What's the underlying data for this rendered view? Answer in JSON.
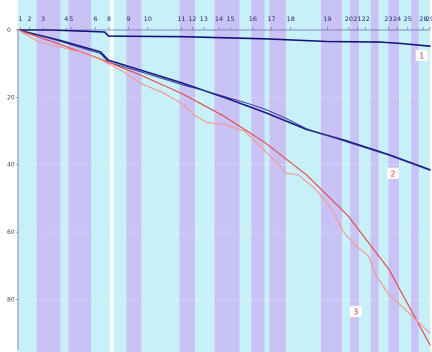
{
  "chart_data": {
    "type": "line",
    "title": "",
    "xlabel": "",
    "ylabel": "",
    "x_range": [
      0,
      100
    ],
    "ylim": [
      0,
      95
    ],
    "y_inverted": true,
    "y_ticks": [
      0,
      20,
      40,
      60,
      80
    ],
    "top_ticks": [
      {
        "label": "1",
        "x": 0.6
      },
      {
        "label": "2",
        "x": 2.8
      },
      {
        "label": "3",
        "x": 6.1
      },
      {
        "label": "4",
        "x": 11.7
      },
      {
        "label": "5",
        "x": 12.9
      },
      {
        "label": "6",
        "x": 18.8
      },
      {
        "label": "8",
        "x": 22.1
      },
      {
        "label": "9",
        "x": 26.8
      },
      {
        "label": "10",
        "x": 31.5
      },
      {
        "label": "11",
        "x": 39.7
      },
      {
        "label": "12",
        "x": 42.3
      },
      {
        "label": "13",
        "x": 45.1
      },
      {
        "label": "14",
        "x": 48.8
      },
      {
        "label": "15",
        "x": 51.6
      },
      {
        "label": "16",
        "x": 57.0
      },
      {
        "label": "17",
        "x": 61.5
      },
      {
        "label": "18",
        "x": 66.2
      },
      {
        "label": "19",
        "x": 75.1
      },
      {
        "label": "20",
        "x": 80.3
      },
      {
        "label": "21",
        "x": 82.4
      },
      {
        "label": "22",
        "x": 84.4
      },
      {
        "label": "23",
        "x": 89.9
      },
      {
        "label": "24",
        "x": 92.0
      },
      {
        "label": "25",
        "x": 94.6
      },
      {
        "label": "28",
        "x": 98.4
      },
      {
        "label": "29",
        "x": 100.0
      }
    ],
    "bands": [
      {
        "x0": 0.0,
        "x1": 4.5,
        "color": "#c8f0f8"
      },
      {
        "x0": 4.5,
        "x1": 10.3,
        "color": "#c9c3f5"
      },
      {
        "x0": 10.3,
        "x1": 12.2,
        "color": "#c8f0f8"
      },
      {
        "x0": 12.2,
        "x1": 17.8,
        "color": "#c9c3f5"
      },
      {
        "x0": 17.8,
        "x1": 22.3,
        "color": "#c8f0f8"
      },
      {
        "x0": 22.3,
        "x1": 23.2,
        "color": "#ffffff"
      },
      {
        "x0": 23.2,
        "x1": 26.3,
        "color": "#c8f0f8"
      },
      {
        "x0": 26.3,
        "x1": 30.0,
        "color": "#c9c3f5"
      },
      {
        "x0": 30.0,
        "x1": 39.2,
        "color": "#c8f0f8"
      },
      {
        "x0": 39.2,
        "x1": 43.0,
        "color": "#c9c3f5"
      },
      {
        "x0": 43.0,
        "x1": 47.7,
        "color": "#c8f0f8"
      },
      {
        "x0": 47.7,
        "x1": 53.8,
        "color": "#c9c3f5"
      },
      {
        "x0": 53.8,
        "x1": 56.6,
        "color": "#c8f0f8"
      },
      {
        "x0": 56.6,
        "x1": 59.9,
        "color": "#c9c3f5"
      },
      {
        "x0": 59.9,
        "x1": 61.0,
        "color": "#c8f0f8"
      },
      {
        "x0": 61.0,
        "x1": 65.1,
        "color": "#c9c3f5"
      },
      {
        "x0": 65.1,
        "x1": 73.5,
        "color": "#c8f0f8"
      },
      {
        "x0": 73.5,
        "x1": 78.7,
        "color": "#c9c3f5"
      },
      {
        "x0": 78.7,
        "x1": 80.6,
        "color": "#c8f0f8"
      },
      {
        "x0": 80.6,
        "x1": 82.8,
        "color": "#c9c3f5"
      },
      {
        "x0": 82.8,
        "x1": 85.6,
        "color": "#c8f0f8"
      },
      {
        "x0": 85.6,
        "x1": 87.5,
        "color": "#c9c3f5"
      },
      {
        "x0": 87.5,
        "x1": 89.9,
        "color": "#c8f0f8"
      },
      {
        "x0": 89.9,
        "x1": 92.5,
        "color": "#c9c3f5"
      },
      {
        "x0": 92.5,
        "x1": 95.4,
        "color": "#c8f0f8"
      },
      {
        "x0": 95.4,
        "x1": 97.3,
        "color": "#c9c3f5"
      },
      {
        "x0": 97.3,
        "x1": 100.0,
        "color": "#c8f0f8"
      }
    ],
    "series": [
      {
        "label": "1",
        "color": "#12127a",
        "width": 1.6,
        "points": [
          [
            0,
            0
          ],
          [
            8,
            0
          ],
          [
            21,
            0.6
          ],
          [
            22,
            1.8
          ],
          [
            40,
            2
          ],
          [
            60,
            2.6
          ],
          [
            75,
            3.4
          ],
          [
            88,
            3.6
          ],
          [
            93,
            4.0
          ],
          [
            100,
            4.8
          ]
        ]
      },
      {
        "label": "2",
        "color": "#1a1a8a",
        "width": 1.6,
        "points": [
          [
            0,
            0
          ],
          [
            10,
            3
          ],
          [
            20,
            6.5
          ],
          [
            22,
            9
          ],
          [
            30,
            12
          ],
          [
            40,
            15.8
          ],
          [
            50,
            20
          ],
          [
            60,
            24.5
          ],
          [
            70,
            29.5
          ],
          [
            80,
            33
          ],
          [
            90,
            37
          ],
          [
            100,
            41.5
          ]
        ]
      },
      {
        "label": "",
        "color": "#2f3a8c",
        "width": 0.9,
        "points": [
          [
            0,
            0
          ],
          [
            10,
            3.3
          ],
          [
            20,
            7.0
          ],
          [
            22,
            9.6
          ],
          [
            30,
            12.5
          ],
          [
            40,
            16.3
          ],
          [
            47,
            18.6
          ],
          [
            55,
            21.5
          ],
          [
            60,
            23.5
          ],
          [
            65,
            26.2
          ],
          [
            70,
            29.3
          ],
          [
            80,
            33.3
          ],
          [
            90,
            37.2
          ],
          [
            100,
            41.7
          ]
        ]
      },
      {
        "label": "3",
        "color": "#e05050",
        "width": 1.2,
        "points": [
          [
            0,
            0
          ],
          [
            10,
            4.2
          ],
          [
            20,
            8.6
          ],
          [
            30,
            13.5
          ],
          [
            40,
            19.0
          ],
          [
            50,
            25.6
          ],
          [
            60,
            33.5
          ],
          [
            70,
            43.0
          ],
          [
            80,
            55.0
          ],
          [
            90,
            71.0
          ],
          [
            100,
            93.5
          ]
        ]
      },
      {
        "label": "",
        "color": "#f39a9a",
        "width": 1.2,
        "points": [
          [
            0,
            0
          ],
          [
            5,
            3.5
          ],
          [
            10,
            5.0
          ],
          [
            15,
            6.5
          ],
          [
            20,
            8.8
          ],
          [
            25,
            12.0
          ],
          [
            30,
            16.0
          ],
          [
            35,
            18.5
          ],
          [
            40,
            22.0
          ],
          [
            43,
            25.5
          ],
          [
            46,
            27.5
          ],
          [
            50,
            28.0
          ],
          [
            55,
            30.0
          ],
          [
            60,
            36.0
          ],
          [
            63,
            39.5
          ],
          [
            65,
            42.5
          ],
          [
            68,
            43.0
          ],
          [
            72,
            47.0
          ],
          [
            76,
            53.0
          ],
          [
            79,
            60.0
          ],
          [
            82,
            64.0
          ],
          [
            85,
            67.0
          ],
          [
            87,
            73.0
          ],
          [
            90,
            78.5
          ],
          [
            94,
            83.0
          ],
          [
            97,
            86.5
          ],
          [
            100,
            90.0
          ]
        ]
      }
    ],
    "annotations": [
      {
        "text": "1",
        "x": 98,
        "y": 8
      },
      {
        "text": "2",
        "x": 91,
        "y": 43
      },
      {
        "text": "3",
        "x": 82,
        "y": 84
      }
    ],
    "grid": true,
    "legend": "none"
  }
}
